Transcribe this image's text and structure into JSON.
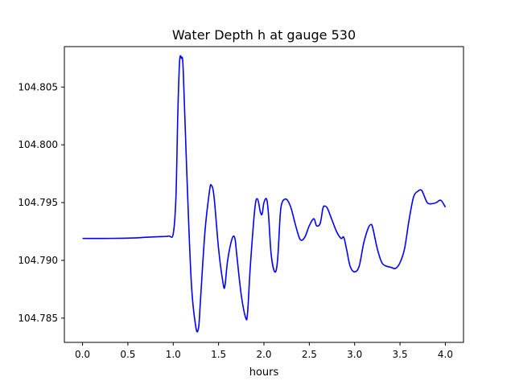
{
  "chart_data": {
    "type": "line",
    "title": "Water Depth h at gauge 530",
    "xlabel": "hours",
    "ylabel": "",
    "xlim": [
      -0.2,
      4.2
    ],
    "ylim": [
      104.7829,
      104.8085
    ],
    "xticks": [
      0.0,
      0.5,
      1.0,
      1.5,
      2.0,
      2.5,
      3.0,
      3.5,
      4.0
    ],
    "xtick_labels": [
      "0.0",
      "0.5",
      "1.0",
      "1.5",
      "2.0",
      "2.5",
      "3.0",
      "3.5",
      "4.0"
    ],
    "yticks": [
      104.785,
      104.79,
      104.795,
      104.8,
      104.805
    ],
    "ytick_labels": [
      "104.785",
      "104.790",
      "104.795",
      "104.800",
      "104.805"
    ],
    "grid": false,
    "legend": "none",
    "series": [
      {
        "color": "#0000ff",
        "x": [
          0.0,
          0.3,
          0.6,
          0.7,
          0.85,
          0.95,
          1.0,
          1.03,
          1.05,
          1.07,
          1.09,
          1.11,
          1.15,
          1.2,
          1.25,
          1.28,
          1.3,
          1.35,
          1.4,
          1.42,
          1.45,
          1.5,
          1.55,
          1.57,
          1.6,
          1.65,
          1.68,
          1.7,
          1.75,
          1.8,
          1.82,
          1.85,
          1.9,
          1.93,
          1.96,
          1.98,
          2.0,
          2.03,
          2.05,
          2.08,
          2.12,
          2.15,
          2.18,
          2.2,
          2.23,
          2.26,
          2.3,
          2.35,
          2.4,
          2.45,
          2.5,
          2.55,
          2.58,
          2.62,
          2.65,
          2.67,
          2.7,
          2.75,
          2.8,
          2.85,
          2.88,
          2.91,
          2.95,
          3.0,
          3.05,
          3.1,
          3.15,
          3.18,
          3.2,
          3.25,
          3.3,
          3.35,
          3.4,
          3.45,
          3.5,
          3.55,
          3.6,
          3.65,
          3.7,
          3.73,
          3.75,
          3.8,
          3.85,
          3.9,
          3.95,
          4.0
        ],
        "y": [
          104.7919,
          104.7919,
          104.79195,
          104.792,
          104.79205,
          104.7921,
          104.7923,
          104.7955,
          104.8025,
          104.8072,
          104.8075,
          104.8065,
          104.7975,
          104.788,
          104.7842,
          104.7842,
          104.7865,
          104.7925,
          104.796,
          104.7965,
          104.7955,
          104.791,
          104.788,
          104.7878,
          104.79,
          104.7919,
          104.7919,
          104.7905,
          104.787,
          104.785,
          104.7855,
          104.7895,
          104.7945,
          104.7953,
          104.7942,
          104.794,
          104.795,
          104.7953,
          104.794,
          104.7905,
          104.789,
          104.79,
          104.794,
          104.795,
          104.7953,
          104.7952,
          104.7945,
          104.793,
          104.7918,
          104.792,
          104.793,
          104.7936,
          104.793,
          104.7932,
          104.7945,
          104.7947,
          104.7945,
          104.7935,
          104.7925,
          104.7919,
          104.792,
          104.791,
          104.7895,
          104.789,
          104.7895,
          104.7915,
          104.7928,
          104.7931,
          104.7928,
          104.791,
          104.7898,
          104.7895,
          104.7894,
          104.7893,
          104.7898,
          104.791,
          104.7935,
          104.7955,
          104.796,
          104.7961,
          104.7959,
          104.795,
          104.7949,
          104.795,
          104.7952,
          104.7946
        ]
      }
    ]
  }
}
